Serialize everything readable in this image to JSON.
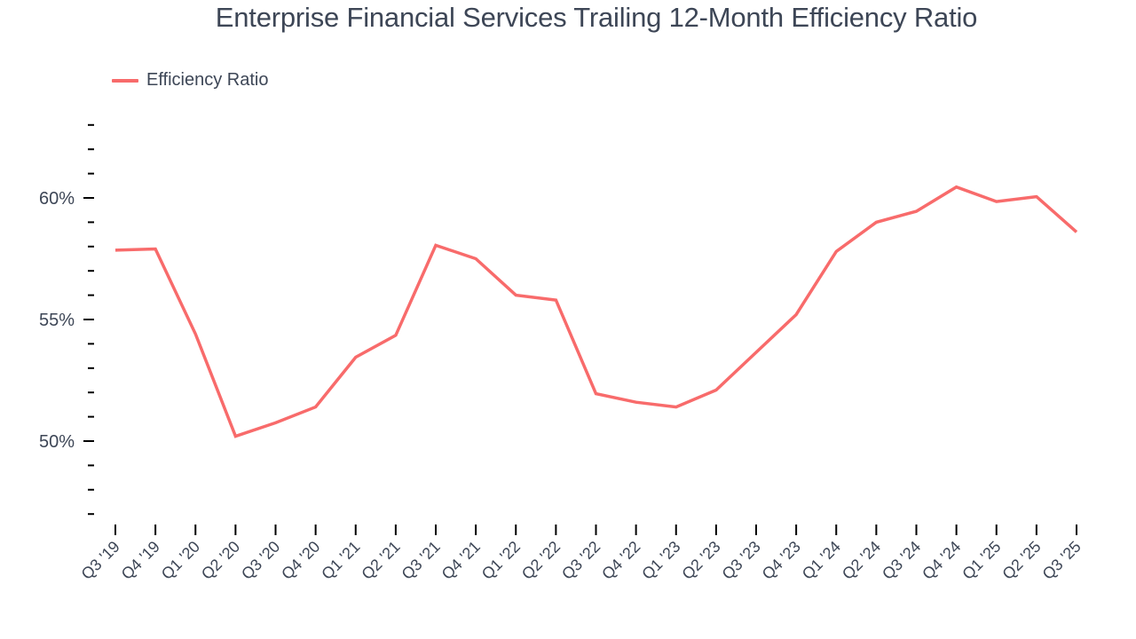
{
  "title": "Enterprise Financial Services Trailing 12-Month Efficiency Ratio",
  "legend": {
    "items": [
      {
        "label": "Efficiency Ratio",
        "color": "#f86b6b"
      }
    ]
  },
  "colors": {
    "line": "#f86b6b",
    "text": "#3d4656",
    "axis": "#000000",
    "background": "#ffffff"
  },
  "chart_data": {
    "type": "line",
    "title": "Enterprise Financial Services Trailing 12-Month Efficiency Ratio",
    "xlabel": "",
    "ylabel": "",
    "categories": [
      "Q3 '19",
      "Q4 '19",
      "Q1 '20",
      "Q2 '20",
      "Q3 '20",
      "Q4 '20",
      "Q1 '21",
      "Q2 '21",
      "Q3 '21",
      "Q4 '21",
      "Q1 '22",
      "Q2 '22",
      "Q3 '22",
      "Q4 '22",
      "Q1 '23",
      "Q2 '23",
      "Q3 '23",
      "Q4 '23",
      "Q1 '24",
      "Q2 '24",
      "Q3 '24",
      "Q4 '24",
      "Q1 '25",
      "Q2 '25",
      "Q3 '25"
    ],
    "series": [
      {
        "name": "Efficiency Ratio",
        "color": "#f86b6b",
        "values": [
          57.85,
          57.9,
          54.4,
          50.2,
          50.75,
          51.4,
          53.45,
          54.35,
          58.05,
          57.5,
          56.0,
          55.8,
          51.95,
          51.6,
          51.4,
          52.1,
          53.65,
          55.2,
          57.8,
          59.0,
          59.45,
          60.45,
          59.85,
          60.05,
          58.6
        ]
      }
    ],
    "ylim": [
      46.8,
      63.3
    ],
    "y_major_ticks": [
      50,
      55,
      60
    ],
    "y_major_tick_labels": [
      "50%",
      "55%",
      "60%"
    ],
    "y_minor_ticks": [
      47,
      48,
      49,
      51,
      52,
      53,
      54,
      56,
      57,
      58,
      59,
      61,
      62,
      63
    ],
    "grid": false,
    "legend_position": "top-left"
  }
}
